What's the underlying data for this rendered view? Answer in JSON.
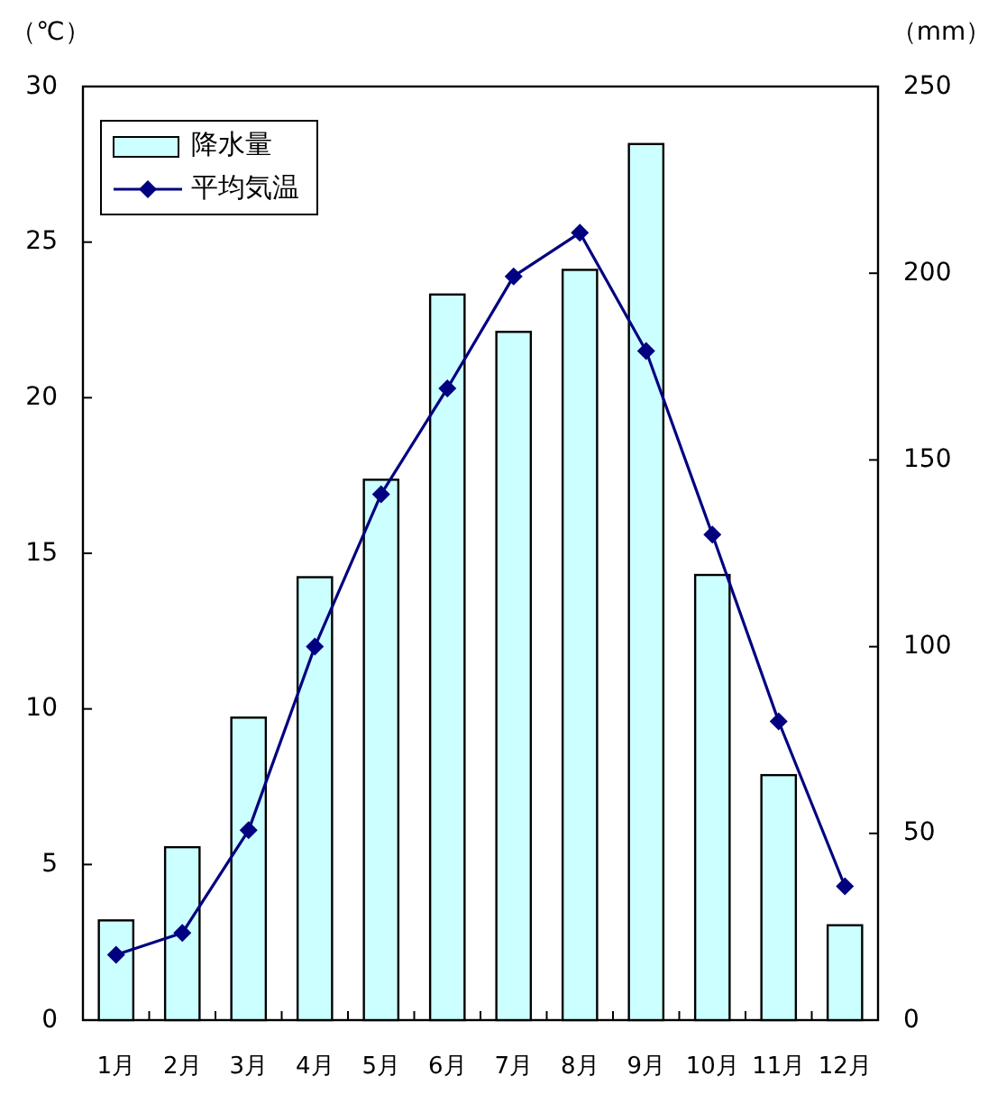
{
  "chart_data": {
    "type": "bar",
    "ylabel": "（℃）",
    "y2label": "（mm）",
    "categories": [
      "1月",
      "2月",
      "3月",
      "4月",
      "5月",
      "6月",
      "7月",
      "8月",
      "9月",
      "10月",
      "11月",
      "12月"
    ],
    "series": [
      {
        "name": "降水量",
        "axis": "y2",
        "color": "#ccffff",
        "values": [
          26.7,
          46.3,
          81,
          118.6,
          144.7,
          194.3,
          184.3,
          200.9,
          234.6,
          119.2,
          65.6,
          25.4
        ]
      },
      {
        "name": "平均気温",
        "type": "line",
        "color": "#000080",
        "marker": "diamond",
        "values": [
          2.1,
          2.8,
          6.1,
          12.0,
          16.9,
          20.3,
          23.9,
          25.3,
          21.5,
          15.6,
          9.6,
          4.3
        ]
      }
    ],
    "ylim": [
      0,
      30
    ],
    "yticks": [
      0,
      5,
      10,
      15,
      20,
      25,
      30
    ],
    "y2lim": [
      0,
      250
    ],
    "y2ticks": [
      0,
      50,
      100,
      150,
      200,
      250
    ],
    "legend": "top left"
  }
}
